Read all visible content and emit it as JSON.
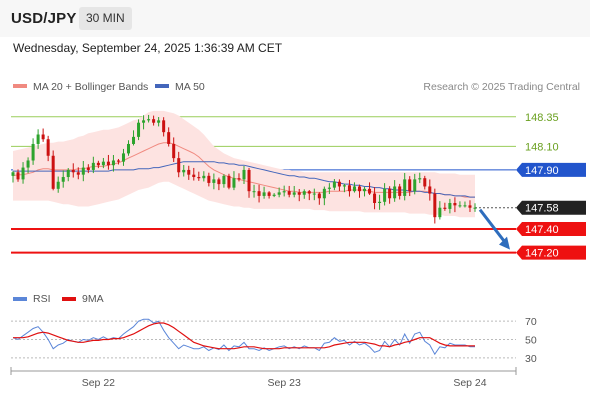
{
  "header": {
    "symbol": "USD/JPY",
    "timeframe": "30 MIN",
    "datetime": "Wednesday, September 24, 2025 1:36:39 AM CET"
  },
  "legend": {
    "ma20_label": "MA 20 + Bollinger Bands",
    "ma50_label": "MA 50",
    "research": "Research © 2025 Trading Central",
    "rsi_label": "RSI",
    "rsi_ma_label": "9MA"
  },
  "colors": {
    "bollinger_fill": "#fde3e1",
    "ma20": "#f08a80",
    "ma50": "#4466bb",
    "candle_up": "#2da32d",
    "candle_down": "#cc1111",
    "resistance": "#9acd5a",
    "pivot": "#2255cc",
    "support": "#ee1111",
    "rsi": "#5b86d8",
    "rsi_ma": "#e01010",
    "current": "#222222"
  },
  "chart_data": [
    {
      "type": "candlestick",
      "x_labels": [
        "Sep 22",
        "Sep 23",
        "Sep 24"
      ],
      "ylim": [
        146.9,
        148.45
      ],
      "levels": [
        {
          "value": 148.35,
          "label": "148.35",
          "kind": "resistance"
        },
        {
          "value": 148.1,
          "label": "148.10",
          "kind": "resistance"
        },
        {
          "value": 147.9,
          "label": "147.90",
          "kind": "pivot"
        },
        {
          "value": 147.58,
          "label": "147.58",
          "kind": "current"
        },
        {
          "value": 147.4,
          "label": "147.40",
          "kind": "support"
        },
        {
          "value": 147.2,
          "label": "147.20",
          "kind": "support"
        }
      ],
      "close": [
        147.88,
        147.82,
        147.92,
        147.98,
        148.12,
        148.2,
        148.16,
        148.02,
        147.74,
        147.8,
        147.84,
        147.9,
        147.88,
        147.86,
        147.92,
        147.9,
        147.96,
        147.94,
        147.97,
        147.94,
        147.98,
        147.97,
        148.04,
        148.12,
        148.18,
        148.3,
        148.32,
        148.33,
        148.3,
        148.32,
        148.22,
        148.12,
        148.0,
        147.88,
        147.9,
        147.86,
        147.84,
        147.83,
        147.85,
        147.79,
        147.82,
        147.78,
        147.85,
        147.75,
        147.83,
        147.82,
        147.9,
        147.72,
        147.72,
        147.68,
        147.71,
        147.68,
        147.69,
        147.71,
        147.72,
        147.69,
        147.71,
        147.69,
        147.72,
        147.7,
        147.7,
        147.66,
        147.74,
        147.75,
        147.8,
        147.76,
        147.77,
        147.72,
        147.76,
        147.72,
        147.74,
        147.7,
        147.62,
        147.63,
        147.74,
        147.66,
        147.76,
        147.68,
        147.82,
        147.72,
        147.82,
        147.83,
        147.76,
        147.7,
        147.5,
        147.58,
        147.57,
        147.62,
        147.6,
        147.6,
        147.6,
        147.58,
        147.58
      ],
      "ma20": [
        147.85,
        147.86,
        147.86,
        147.87,
        147.88,
        147.9,
        147.91,
        147.91,
        147.9,
        147.9,
        147.9,
        147.9,
        147.9,
        147.91,
        147.91,
        147.92,
        147.93,
        147.93,
        147.93,
        147.94,
        147.95,
        147.96,
        147.98,
        148.0,
        148.02,
        148.04,
        148.06,
        148.08,
        148.1,
        148.12,
        148.13,
        148.13,
        148.12,
        148.1,
        148.08,
        148.06,
        148.04,
        148.01,
        147.97,
        147.93,
        147.9,
        147.88,
        147.86,
        147.84,
        147.83,
        147.82,
        147.81,
        147.8,
        147.79,
        147.78,
        147.77,
        147.76,
        147.75,
        147.74,
        147.73,
        147.72,
        147.72,
        147.71,
        147.71,
        147.71,
        147.71,
        147.71,
        147.71,
        147.72,
        147.72,
        147.72,
        147.72,
        147.73,
        147.73,
        147.73,
        147.73,
        147.72,
        147.71,
        147.71,
        147.71,
        147.71,
        147.71,
        147.71,
        147.71,
        147.71,
        147.72,
        147.72,
        147.72,
        147.71,
        147.7,
        147.7,
        147.69,
        147.69,
        147.68,
        147.68,
        147.67,
        147.67,
        147.67
      ],
      "ma50": [
        147.89,
        147.89,
        147.89,
        147.89,
        147.89,
        147.89,
        147.89,
        147.89,
        147.89,
        147.89,
        147.89,
        147.89,
        147.89,
        147.89,
        147.89,
        147.89,
        147.89,
        147.89,
        147.89,
        147.89,
        147.9,
        147.9,
        147.9,
        147.9,
        147.9,
        147.91,
        147.91,
        147.91,
        147.92,
        147.92,
        147.93,
        147.94,
        147.95,
        147.96,
        147.97,
        147.97,
        147.97,
        147.97,
        147.97,
        147.97,
        147.97,
        147.96,
        147.96,
        147.95,
        147.95,
        147.94,
        147.94,
        147.93,
        147.92,
        147.91,
        147.9,
        147.89,
        147.88,
        147.87,
        147.86,
        147.85,
        147.85,
        147.84,
        147.84,
        147.83,
        147.83,
        147.82,
        147.81,
        147.8,
        147.8,
        147.79,
        147.78,
        147.78,
        147.77,
        147.77,
        147.76,
        147.76,
        147.75,
        147.75,
        147.74,
        147.74,
        147.73,
        147.73,
        147.73,
        147.72,
        147.72,
        147.72,
        147.71,
        147.71,
        147.7,
        147.7,
        147.69,
        147.69,
        147.68,
        147.68,
        147.68,
        147.67,
        147.67
      ],
      "bb_upper": [
        148.06,
        148.07,
        148.08,
        148.09,
        148.1,
        148.11,
        148.12,
        148.13,
        148.13,
        148.14,
        148.14,
        148.15,
        148.16,
        148.18,
        148.19,
        148.21,
        148.22,
        148.23,
        148.24,
        148.24,
        148.25,
        148.26,
        148.28,
        148.3,
        148.32,
        148.33,
        148.36,
        148.39,
        148.4,
        148.4,
        148.4,
        148.39,
        148.38,
        148.36,
        148.33,
        148.3,
        148.27,
        148.24,
        148.2,
        148.15,
        148.1,
        148.07,
        148.04,
        148.02,
        148.0,
        147.99,
        147.98,
        147.97,
        147.96,
        147.95,
        147.94,
        147.93,
        147.92,
        147.91,
        147.9,
        147.9,
        147.89,
        147.89,
        147.88,
        147.88,
        147.88,
        147.88,
        147.88,
        147.88,
        147.88,
        147.88,
        147.88,
        147.88,
        147.88,
        147.88,
        147.88,
        147.88,
        147.88,
        147.88,
        147.88,
        147.88,
        147.88,
        147.88,
        147.88,
        147.88,
        147.88,
        147.88,
        147.88,
        147.88,
        147.88,
        147.87,
        147.87,
        147.87,
        147.87,
        147.86,
        147.86,
        147.86,
        147.86
      ],
      "bb_lower": [
        147.64,
        147.64,
        147.64,
        147.64,
        147.64,
        147.64,
        147.64,
        147.64,
        147.63,
        147.62,
        147.61,
        147.61,
        147.6,
        147.59,
        147.59,
        147.59,
        147.6,
        147.61,
        147.62,
        147.63,
        147.64,
        147.65,
        147.67,
        147.69,
        147.71,
        147.73,
        147.74,
        147.75,
        147.77,
        147.79,
        147.8,
        147.8,
        147.78,
        147.76,
        147.74,
        147.72,
        147.7,
        147.68,
        147.66,
        147.64,
        147.63,
        147.62,
        147.61,
        147.6,
        147.59,
        147.59,
        147.58,
        147.58,
        147.57,
        147.57,
        147.57,
        147.57,
        147.57,
        147.57,
        147.57,
        147.57,
        147.57,
        147.57,
        147.57,
        147.57,
        147.56,
        147.56,
        147.56,
        147.55,
        147.55,
        147.55,
        147.55,
        147.55,
        147.55,
        147.55,
        147.54,
        147.54,
        147.54,
        147.54,
        147.54,
        147.54,
        147.54,
        147.54,
        147.54,
        147.53,
        147.53,
        147.53,
        147.53,
        147.52,
        147.52,
        147.52,
        147.51,
        147.51,
        147.51,
        147.5,
        147.5,
        147.5,
        147.5
      ]
    },
    {
      "type": "line",
      "name": "RSI",
      "y_ticks": [
        70,
        50,
        30
      ],
      "ylim": [
        20,
        80
      ],
      "rsi": [
        52,
        50,
        54,
        58,
        62,
        64,
        58,
        50,
        40,
        44,
        46,
        50,
        48,
        47,
        50,
        49,
        52,
        50,
        53,
        50,
        52,
        51,
        56,
        60,
        64,
        70,
        72,
        72,
        68,
        70,
        60,
        52,
        46,
        40,
        44,
        42,
        40,
        40,
        42,
        38,
        41,
        39,
        44,
        38,
        43,
        42,
        47,
        40,
        40,
        38,
        41,
        38,
        40,
        42,
        43,
        40,
        42,
        40,
        43,
        41,
        41,
        38,
        46,
        47,
        52,
        48,
        49,
        44,
        48,
        44,
        46,
        42,
        36,
        38,
        48,
        42,
        50,
        44,
        56,
        46,
        56,
        58,
        48,
        44,
        34,
        42,
        41,
        46,
        44,
        44,
        44,
        42,
        42
      ],
      "rsi_ma": [
        52,
        52,
        52,
        53,
        55,
        57,
        58,
        57,
        55,
        53,
        51,
        49,
        48,
        47,
        47,
        48,
        49,
        49,
        50,
        50,
        51,
        51,
        52,
        54,
        56,
        59,
        62,
        65,
        67,
        68,
        68,
        66,
        63,
        59,
        55,
        51,
        47,
        45,
        43,
        42,
        41,
        40,
        40,
        40,
        40,
        41,
        42,
        42,
        42,
        41,
        40,
        40,
        40,
        40,
        41,
        41,
        41,
        41,
        41,
        41,
        41,
        41,
        41,
        42,
        44,
        45,
        46,
        47,
        47,
        47,
        47,
        46,
        45,
        43,
        43,
        42,
        44,
        45,
        47,
        48,
        50,
        52,
        52,
        52,
        49,
        46,
        44,
        43,
        43,
        43,
        43,
        43,
        43
      ]
    }
  ]
}
